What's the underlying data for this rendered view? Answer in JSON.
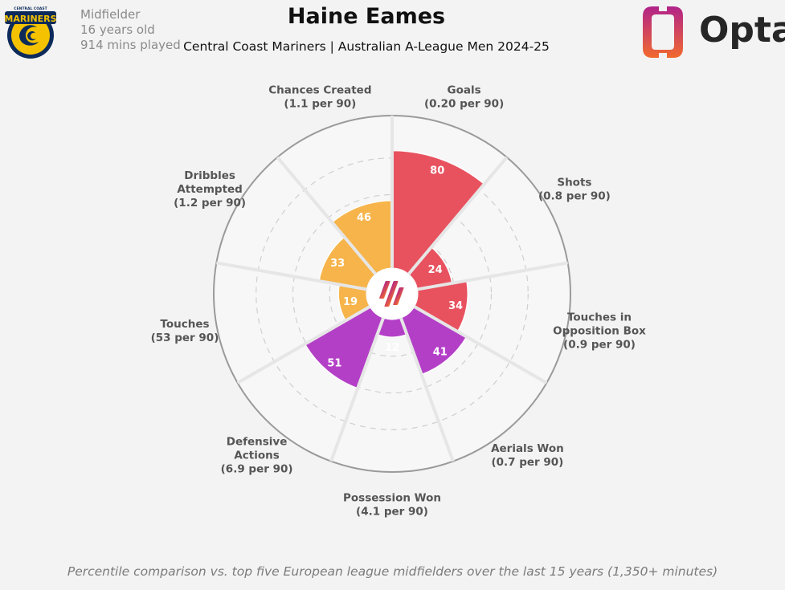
{
  "player": {
    "name": "Haine Eames",
    "position": "Midfielder",
    "age": "16 years old",
    "minutes": "914 mins played"
  },
  "subtitle": "Central Coast Mariners | Australian A-League Men 2024-25",
  "brand": {
    "name": "Opta"
  },
  "crest": {
    "text_top": "CENTRAL COAST",
    "text_main": "MARINERS"
  },
  "footnote": "Percentile comparison vs. top five European league midfielders over the last 15 years (1,350+ minutes)",
  "colors": {
    "attacking": "#e8525f",
    "possession": "#f6b44a",
    "defending": "#b43fc7",
    "background": "#f3f3f3",
    "low_value_text": "#aaaaaa"
  },
  "chart_data": {
    "type": "polar-area (pizza)",
    "scale": [
      0,
      100
    ],
    "categories": [
      {
        "name": "Goals",
        "label": [
          "Goals"
        ],
        "per90": "(0.20 per 90)",
        "percentile": 80,
        "group": "attacking"
      },
      {
        "name": "Shots",
        "label": [
          "Shots"
        ],
        "per90": "(0.8 per 90)",
        "percentile": 24,
        "group": "attacking"
      },
      {
        "name": "Touches in Opposition Box",
        "label": [
          "Touches in",
          "Opposition Box"
        ],
        "per90": "(0.9 per 90)",
        "percentile": 34,
        "group": "attacking"
      },
      {
        "name": "Aerials Won",
        "label": [
          "Aerials Won"
        ],
        "per90": "(0.7 per 90)",
        "percentile": 41,
        "group": "defending"
      },
      {
        "name": "Possession Won",
        "label": [
          "Possession Won"
        ],
        "per90": "(4.1 per 90)",
        "percentile": 12,
        "group": "defending"
      },
      {
        "name": "Defensive Actions",
        "label": [
          "Defensive",
          "Actions"
        ],
        "per90": "(6.9 per 90)",
        "percentile": 51,
        "group": "defending"
      },
      {
        "name": "Touches",
        "label": [
          "Touches"
        ],
        "per90": "(53 per 90)",
        "percentile": 19,
        "group": "possession"
      },
      {
        "name": "Dribbles Attempted",
        "label": [
          "Dribbles",
          "Attempted"
        ],
        "per90": "(1.2 per 90)",
        "percentile": 33,
        "group": "possession"
      },
      {
        "name": "Chances Created",
        "label": [
          "Chances Created"
        ],
        "per90": "(1.1 per 90)",
        "percentile": 46,
        "group": "possession"
      }
    ]
  }
}
